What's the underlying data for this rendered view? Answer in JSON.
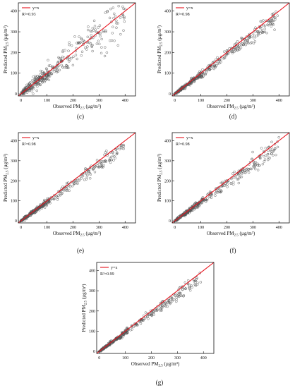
{
  "chart_data": [
    {
      "type": "scatter",
      "panel_label": "(c)",
      "xlabel": {
        "base": "Observed PM",
        "sub": "2.5",
        "unit": " (µg/m³)"
      },
      "ylabel": {
        "base": "Predicted PM",
        "sub": "2.5",
        "unit": " (µg/m³)"
      },
      "xlim": [
        -10,
        440
      ],
      "ylim": [
        -10,
        440
      ],
      "xticks": [
        0,
        100,
        200,
        300,
        400
      ],
      "yticks": [
        0,
        100,
        200,
        300,
        400
      ],
      "legend": {
        "position": "top-left",
        "line_label": "y=x",
        "r2_label": "R²=0.93"
      },
      "reference_line": {
        "name": "y=x",
        "color": "#e8121c"
      },
      "r2": 0.93,
      "noise": 0.26,
      "n_points": 380
    },
    {
      "type": "scatter",
      "panel_label": "(d)",
      "xlabel": {
        "base": "Observed PM",
        "sub": "2.5",
        "unit": " (µg/m³)"
      },
      "ylabel": {
        "base": "Predicted PM",
        "sub": "2.5",
        "unit": " (µg/m³)"
      },
      "xlim": [
        -10,
        440
      ],
      "ylim": [
        -10,
        440
      ],
      "xticks": [
        0,
        100,
        200,
        300,
        400
      ],
      "yticks": [
        0,
        100,
        200,
        300,
        400
      ],
      "legend": {
        "position": "top-left",
        "line_label": "y=x",
        "r2_label": "R²=0.98"
      },
      "reference_line": {
        "name": "y=x",
        "color": "#e8121c"
      },
      "r2": 0.98,
      "noise": 0.1,
      "n_points": 380
    },
    {
      "type": "scatter",
      "panel_label": "(e)",
      "xlabel": {
        "base": "Observed PM",
        "sub": "2.5",
        "unit": " (µg/m³)"
      },
      "ylabel": {
        "base": "Predicted PM",
        "sub": "2.5",
        "unit": " (µg/m³)"
      },
      "xlim": [
        -10,
        440
      ],
      "ylim": [
        -10,
        440
      ],
      "xticks": [
        0,
        100,
        200,
        300,
        400
      ],
      "yticks": [
        0,
        100,
        200,
        300,
        400
      ],
      "legend": {
        "position": "top-left",
        "line_label": "y=x",
        "r2_label": "R²=0.98"
      },
      "reference_line": {
        "name": "y=x",
        "color": "#e8121c"
      },
      "r2": 0.98,
      "noise": 0.1,
      "n_points": 380
    },
    {
      "type": "scatter",
      "panel_label": "(f)",
      "xlabel": {
        "base": "Observed PM",
        "sub": "2.5",
        "unit": " (µg/m³)"
      },
      "ylabel": {
        "base": "Predicted PM",
        "sub": "2.5",
        "unit": " (µg/m³)"
      },
      "xlim": [
        -10,
        440
      ],
      "ylim": [
        -10,
        440
      ],
      "xticks": [
        0,
        100,
        200,
        300,
        400
      ],
      "yticks": [
        0,
        100,
        200,
        300,
        400
      ],
      "legend": {
        "position": "top-left",
        "line_label": "y=x",
        "r2_label": "R²=0.98"
      },
      "reference_line": {
        "name": "y=x",
        "color": "#e8121c"
      },
      "r2": 0.98,
      "noise": 0.1,
      "n_points": 380
    },
    {
      "type": "scatter",
      "panel_label": "(g)",
      "xlabel": {
        "base": "Observed PM",
        "sub": "2.5",
        "unit": " (µg/m³)"
      },
      "ylabel": {
        "base": "Predicted PM",
        "sub": "2.5",
        "unit": " (µg/m³)"
      },
      "xlim": [
        -10,
        440
      ],
      "ylim": [
        -10,
        440
      ],
      "xticks": [
        0,
        100,
        200,
        300,
        400
      ],
      "yticks": [
        0,
        100,
        200,
        300,
        400
      ],
      "legend": {
        "position": "top-left",
        "line_label": "y=x",
        "r2_label": "R²=0.99"
      },
      "reference_line": {
        "name": "y=x",
        "color": "#e8121c"
      },
      "r2": 0.99,
      "noise": 0.08,
      "n_points": 380
    }
  ],
  "colors": {
    "points": "#555555",
    "axes": "#111111",
    "reference": "#e8121c"
  }
}
